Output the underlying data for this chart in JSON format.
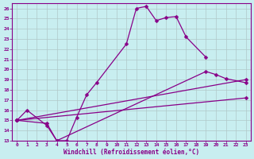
{
  "xlabel": "Windchill (Refroidissement éolien,°C)",
  "bg_color": "#c8eef0",
  "line_color": "#880088",
  "grid_color": "#b0c8c8",
  "xlim": [
    -0.5,
    23.5
  ],
  "ylim": [
    13,
    26.5
  ],
  "xticks": [
    0,
    1,
    2,
    3,
    4,
    5,
    6,
    7,
    8,
    9,
    10,
    11,
    12,
    13,
    14,
    15,
    16,
    17,
    18,
    19,
    20,
    21,
    22,
    23
  ],
  "yticks": [
    13,
    14,
    15,
    16,
    17,
    18,
    19,
    20,
    21,
    22,
    23,
    24,
    25,
    26
  ],
  "line1_x": [
    0,
    1,
    3,
    4,
    5,
    6,
    7,
    8,
    11,
    12,
    13,
    14,
    15,
    16,
    17,
    19
  ],
  "line1_y": [
    15.0,
    16.0,
    14.5,
    13.0,
    13.0,
    15.3,
    17.5,
    18.7,
    22.5,
    26.0,
    26.2,
    24.8,
    25.1,
    25.2,
    23.2,
    21.2
  ],
  "line2_x": [
    0,
    3,
    4,
    19,
    20,
    21,
    23
  ],
  "line2_y": [
    15.0,
    14.7,
    13.0,
    19.8,
    19.5,
    19.1,
    18.7
  ],
  "line3_x": [
    0,
    23
  ],
  "line3_y": [
    15.0,
    19.0
  ],
  "line4_x": [
    0,
    23
  ],
  "line4_y": [
    15.0,
    17.2
  ]
}
